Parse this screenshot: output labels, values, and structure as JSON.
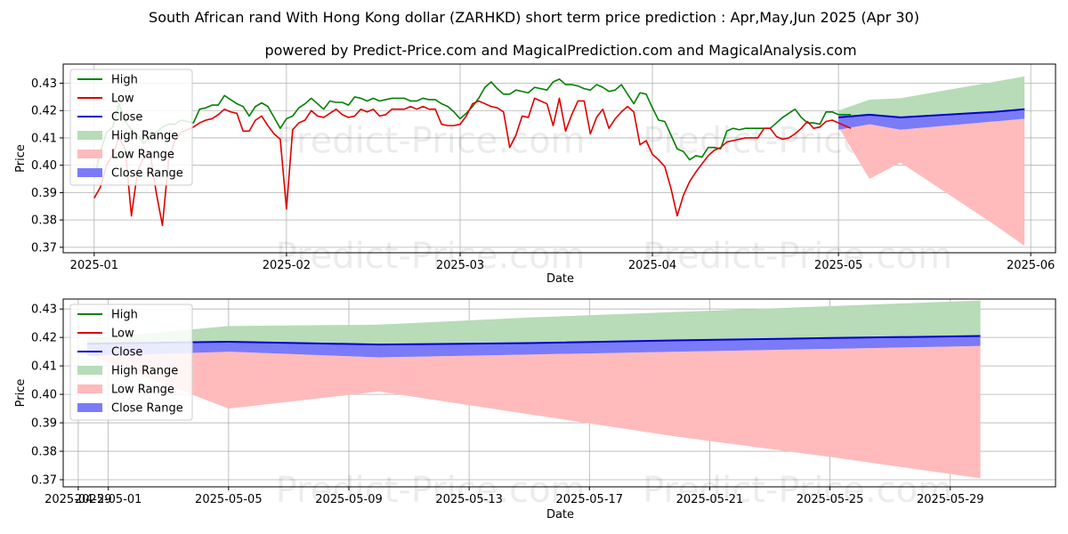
{
  "title": "South African rand With Hong Kong dollar (ZARHKD) short term price prediction : Apr,May,Jun 2025 (Apr 30)",
  "subtitle": "powered by Predict-Price.com and MagicalPrediction.com and MagicalAnalysis.com",
  "watermark": "Predict-Price.com",
  "colors": {
    "high": "#008000",
    "low": "#dd0000",
    "close": "#0000cc",
    "high_range": "#b7dcb7",
    "low_range": "#ffbbbb",
    "close_range": "#7b7bf8",
    "grid": "#b0b0b0"
  },
  "chart_data": [
    {
      "type": "line",
      "xlabel": "Date",
      "ylabel": "Price",
      "ylim": [
        0.368,
        0.437
      ],
      "yticks": [
        0.37,
        0.38,
        0.39,
        0.4,
        0.41,
        0.42,
        0.43
      ],
      "ytick_labels": [
        "0.37",
        "0.38",
        "0.39",
        "0.40",
        "0.41",
        "0.42",
        "0.43"
      ],
      "xlim_days": [
        -5,
        155
      ],
      "xticks_days": [
        0,
        31,
        59,
        90,
        120,
        151
      ],
      "xtick_labels": [
        "2025-01",
        "2025-02",
        "2025-03",
        "2025-04",
        "2025-05",
        "2025-06"
      ],
      "legend": [
        "High",
        "Low",
        "Close",
        "High Range",
        "Low Range",
        "Close Range"
      ],
      "legend_position": "top-left",
      "series": [
        {
          "name": "High",
          "x": [
            0,
            1,
            2,
            3,
            4,
            5,
            6,
            7,
            8,
            9,
            10,
            11,
            12,
            13,
            14,
            15,
            16,
            17,
            18,
            19,
            20,
            21,
            22,
            23,
            24,
            25,
            26,
            27,
            28,
            29,
            30,
            31,
            32,
            33,
            34,
            35,
            36,
            37,
            38,
            39,
            40,
            41,
            42,
            43,
            44,
            45,
            46,
            47,
            48,
            49,
            50,
            51,
            52,
            53,
            54,
            55,
            56,
            57,
            58,
            59,
            60,
            61,
            62,
            63,
            64,
            65,
            66,
            67,
            68,
            69,
            70,
            71,
            72,
            73,
            74,
            75,
            76,
            77,
            78,
            79,
            80,
            81,
            82,
            83,
            84,
            85,
            86,
            87,
            88,
            89,
            90,
            91,
            92,
            93,
            94,
            95,
            96,
            97,
            98,
            99,
            100,
            101,
            102,
            103,
            104,
            105,
            106,
            107,
            108,
            109,
            110,
            111,
            112,
            113,
            114,
            115,
            116,
            117,
            118,
            119,
            120,
            121,
            122
          ],
          "values": [
            0.395,
            0.405,
            0.412,
            0.414,
            0.4225,
            0.416,
            0.413,
            0.411,
            0.408,
            0.411,
            0.412,
            0.414,
            0.415,
            0.415,
            0.4165,
            0.416,
            0.4155,
            0.4205,
            0.421,
            0.422,
            0.422,
            0.4255,
            0.424,
            0.4225,
            0.4215,
            0.418,
            0.4215,
            0.4228,
            0.4215,
            0.4175,
            0.4135,
            0.417,
            0.418,
            0.421,
            0.4225,
            0.4245,
            0.4225,
            0.4205,
            0.4235,
            0.423,
            0.423,
            0.422,
            0.425,
            0.4245,
            0.4235,
            0.4245,
            0.4235,
            0.424,
            0.4245,
            0.4245,
            0.4245,
            0.4235,
            0.4235,
            0.4245,
            0.424,
            0.424,
            0.4225,
            0.4215,
            0.4195,
            0.417,
            0.419,
            0.4215,
            0.4245,
            0.4285,
            0.4305,
            0.428,
            0.426,
            0.426,
            0.4275,
            0.427,
            0.4265,
            0.4285,
            0.428,
            0.4275,
            0.4305,
            0.4315,
            0.4295,
            0.4295,
            0.429,
            0.428,
            0.4275,
            0.4295,
            0.4285,
            0.427,
            0.4275,
            0.4295,
            0.426,
            0.4225,
            0.4265,
            0.426,
            0.421,
            0.4165,
            0.416,
            0.411,
            0.406,
            0.405,
            0.402,
            0.4035,
            0.403,
            0.4065,
            0.4065,
            0.406,
            0.4125,
            0.4135,
            0.413,
            0.4135,
            0.4135,
            0.4135,
            0.4135,
            0.4135,
            0.4155,
            0.4175,
            0.419,
            0.4205,
            0.4175,
            0.4155,
            0.4155,
            0.415,
            0.4195,
            0.4195,
            0.4185,
            0.4185,
            0.4185
          ]
        },
        {
          "name": "Low",
          "x": [
            0,
            1,
            2,
            3,
            4,
            5,
            6,
            7,
            8,
            9,
            10,
            11,
            12,
            13,
            14,
            15,
            16,
            17,
            18,
            19,
            20,
            21,
            22,
            23,
            24,
            25,
            26,
            27,
            28,
            29,
            30,
            31,
            32,
            33,
            34,
            35,
            36,
            37,
            38,
            39,
            40,
            41,
            42,
            43,
            44,
            45,
            46,
            47,
            48,
            49,
            50,
            51,
            52,
            53,
            54,
            55,
            56,
            57,
            58,
            59,
            60,
            61,
            62,
            63,
            64,
            65,
            66,
            67,
            68,
            69,
            70,
            71,
            72,
            73,
            74,
            75,
            76,
            77,
            78,
            79,
            80,
            81,
            82,
            83,
            84,
            85,
            86,
            87,
            88,
            89,
            90,
            91,
            92,
            93,
            94,
            95,
            96,
            97,
            98,
            99,
            100,
            101,
            102,
            103,
            104,
            105,
            106,
            107,
            108,
            109,
            110,
            111,
            112,
            113,
            114,
            115,
            116,
            117,
            118,
            119,
            120,
            121,
            122
          ],
          "values": [
            0.388,
            0.392,
            0.4,
            0.404,
            0.41,
            0.406,
            0.3815,
            0.398,
            0.403,
            0.405,
            0.39,
            0.378,
            0.402,
            0.409,
            0.412,
            0.413,
            0.414,
            0.4155,
            0.4165,
            0.417,
            0.4185,
            0.4205,
            0.4195,
            0.419,
            0.4125,
            0.4125,
            0.4165,
            0.418,
            0.4145,
            0.4115,
            0.4095,
            0.384,
            0.413,
            0.4155,
            0.4165,
            0.42,
            0.418,
            0.4175,
            0.419,
            0.4205,
            0.4185,
            0.4175,
            0.418,
            0.4205,
            0.4195,
            0.4205,
            0.418,
            0.4185,
            0.4205,
            0.4205,
            0.4205,
            0.4215,
            0.4205,
            0.4215,
            0.4205,
            0.4205,
            0.415,
            0.4145,
            0.4145,
            0.415,
            0.418,
            0.4225,
            0.4235,
            0.4225,
            0.4215,
            0.421,
            0.4195,
            0.4065,
            0.411,
            0.418,
            0.4175,
            0.4245,
            0.4235,
            0.4225,
            0.4145,
            0.4245,
            0.4125,
            0.4185,
            0.4235,
            0.4235,
            0.4115,
            0.4175,
            0.4205,
            0.4135,
            0.417,
            0.4195,
            0.4215,
            0.4195,
            0.4075,
            0.409,
            0.404,
            0.402,
            0.3995,
            0.3915,
            0.3815,
            0.389,
            0.394,
            0.3975,
            0.4005,
            0.4035,
            0.4055,
            0.4065,
            0.4085,
            0.409,
            0.4095,
            0.41,
            0.41,
            0.41,
            0.4135,
            0.4135,
            0.4105,
            0.4095,
            0.41,
            0.4115,
            0.4135,
            0.416,
            0.4135,
            0.414,
            0.416,
            0.4165,
            0.4155,
            0.4145,
            0.4135
          ]
        },
        {
          "name": "Close",
          "x": [
            120,
            125,
            130,
            145,
            150
          ],
          "values": [
            0.4175,
            0.4185,
            0.4175,
            0.4195,
            0.4205
          ]
        }
      ],
      "ranges": [
        {
          "name": "High Range",
          "x": [
            120,
            125,
            130,
            135,
            140,
            145,
            150
          ],
          "upper": [
            0.42,
            0.424,
            0.4245,
            0.4265,
            0.4285,
            0.4305,
            0.4325
          ],
          "lower": [
            0.418,
            0.4185,
            0.4175,
            0.418,
            0.4185,
            0.4195,
            0.4205
          ]
        },
        {
          "name": "Low Range",
          "x": [
            120,
            125,
            130,
            135,
            140,
            145,
            150
          ],
          "upper": [
            0.415,
            0.415,
            0.413,
            0.414,
            0.415,
            0.416,
            0.417
          ],
          "lower": [
            0.414,
            0.395,
            0.401,
            0.3935,
            0.386,
            0.3785,
            0.3705
          ]
        },
        {
          "name": "Close Range",
          "x": [
            120,
            125,
            130,
            135,
            140,
            145,
            150
          ],
          "upper": [
            0.418,
            0.4185,
            0.4175,
            0.418,
            0.4185,
            0.4195,
            0.4205
          ],
          "lower": [
            0.413,
            0.415,
            0.413,
            0.414,
            0.415,
            0.416,
            0.417
          ]
        }
      ]
    },
    {
      "type": "line",
      "xlabel": "Date",
      "ylabel": "Price",
      "ylim": [
        0.3675,
        0.4335
      ],
      "yticks": [
        0.37,
        0.38,
        0.39,
        0.4,
        0.41,
        0.42,
        0.43
      ],
      "ytick_labels": [
        "0.37",
        "0.38",
        "0.39",
        "0.40",
        "0.41",
        "0.42",
        "0.43"
      ],
      "xlim_days": [
        -1.5,
        31.5
      ],
      "xticks_days": [
        -1,
        0,
        4,
        8,
        12,
        16,
        20,
        24,
        28
      ],
      "xtick_labels": [
        "2025-04-29",
        "2025-05-01",
        "2025-05-05",
        "2025-05-09",
        "2025-05-13",
        "2025-05-17",
        "2025-05-21",
        "2025-05-25",
        "2025-05-29"
      ],
      "legend": [
        "High",
        "Low",
        "Close",
        "High Range",
        "Low Range",
        "Close Range"
      ],
      "legend_position": "top-left",
      "series": [
        {
          "name": "Close",
          "x": [
            -0.7,
            4,
            9,
            14,
            19,
            24,
            29
          ],
          "values": [
            0.4178,
            0.4185,
            0.4175,
            0.418,
            0.419,
            0.4198,
            0.4205
          ]
        }
      ],
      "ranges": [
        {
          "name": "High Range",
          "x": [
            -0.7,
            4,
            9,
            14,
            19,
            24,
            29
          ],
          "upper": [
            0.4195,
            0.424,
            0.4245,
            0.427,
            0.429,
            0.431,
            0.433
          ],
          "lower": [
            0.418,
            0.4185,
            0.4175,
            0.418,
            0.419,
            0.4198,
            0.4205
          ]
        },
        {
          "name": "Low Range",
          "x": [
            -0.7,
            4,
            9,
            14,
            19,
            24,
            29
          ],
          "upper": [
            0.415,
            0.415,
            0.413,
            0.414,
            0.415,
            0.416,
            0.417
          ],
          "lower": [
            0.414,
            0.395,
            0.401,
            0.393,
            0.385,
            0.378,
            0.3705
          ]
        },
        {
          "name": "Close Range",
          "x": [
            -0.7,
            4,
            9,
            14,
            19,
            24,
            29
          ],
          "upper": [
            0.418,
            0.4185,
            0.4175,
            0.418,
            0.419,
            0.4198,
            0.4205
          ],
          "lower": [
            0.4135,
            0.415,
            0.413,
            0.414,
            0.415,
            0.416,
            0.417
          ]
        }
      ]
    }
  ]
}
